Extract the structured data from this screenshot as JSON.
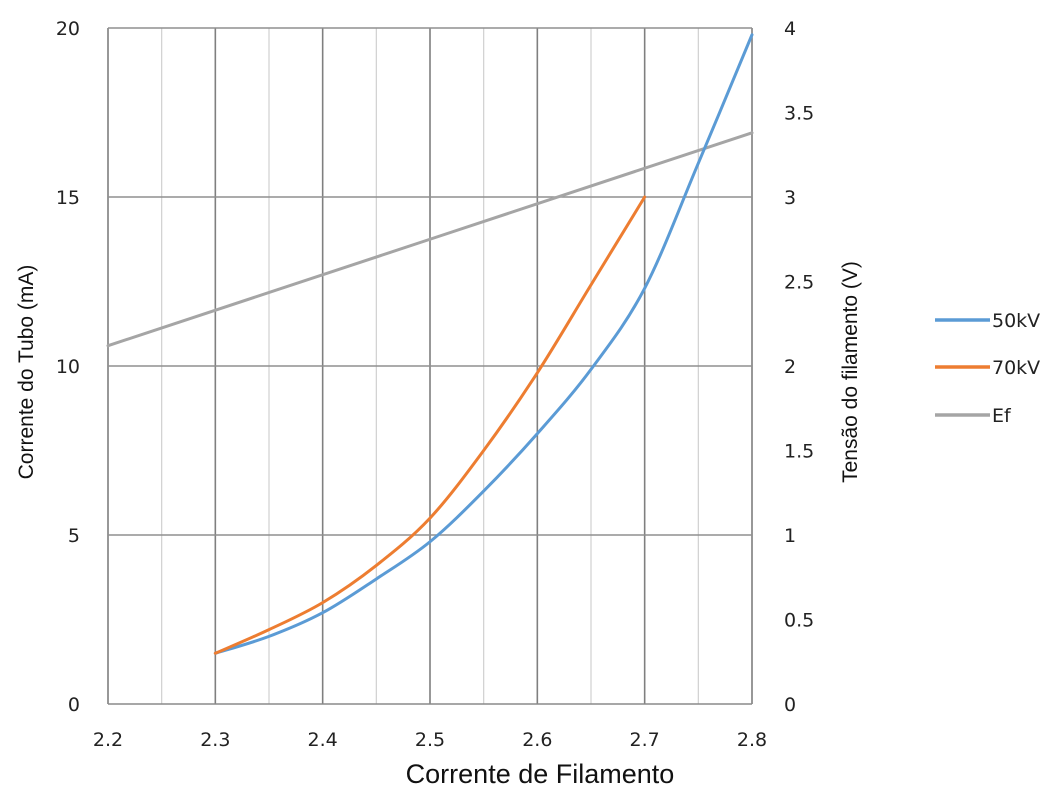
{
  "chart_data": {
    "type": "line",
    "title": "",
    "xlabel": "Corrente de Filamento",
    "ylabel": "Corrente do Tubo (mA)",
    "y2label": "Tensão do filamento (V)",
    "xlim": [
      2.2,
      2.8
    ],
    "ylim": [
      0,
      20
    ],
    "y2lim": [
      0,
      4
    ],
    "x_ticks": [
      "2.2",
      "2.3",
      "2.4",
      "2.5",
      "2.6",
      "2.7",
      "2.8"
    ],
    "y_ticks": [
      "0",
      "5",
      "10",
      "15",
      "20"
    ],
    "y2_ticks": [
      "0",
      "0.5",
      "1",
      "1.5",
      "2",
      "2.5",
      "3",
      "3.5",
      "4"
    ],
    "grid": true,
    "legend_position": "right",
    "series": [
      {
        "name": "50kV",
        "axis": "left",
        "color": "#5b9bd5",
        "x": [
          2.3,
          2.35,
          2.4,
          2.45,
          2.5,
          2.55,
          2.6,
          2.65,
          2.7,
          2.75,
          2.8
        ],
        "y": [
          1.5,
          2.0,
          2.7,
          3.7,
          4.8,
          6.3,
          8.0,
          9.9,
          12.3,
          16.0,
          19.8
        ]
      },
      {
        "name": "70kV",
        "axis": "left",
        "color": "#ed7d31",
        "x": [
          2.3,
          2.35,
          2.4,
          2.45,
          2.5,
          2.55,
          2.6,
          2.65,
          2.7
        ],
        "y": [
          1.5,
          2.2,
          3.0,
          4.1,
          5.5,
          7.5,
          9.8,
          12.4,
          15.0
        ]
      },
      {
        "name": "Ef",
        "axis": "right",
        "color": "#a5a5a5",
        "x": [
          2.2,
          2.8
        ],
        "y": [
          2.12,
          3.38
        ]
      }
    ]
  }
}
